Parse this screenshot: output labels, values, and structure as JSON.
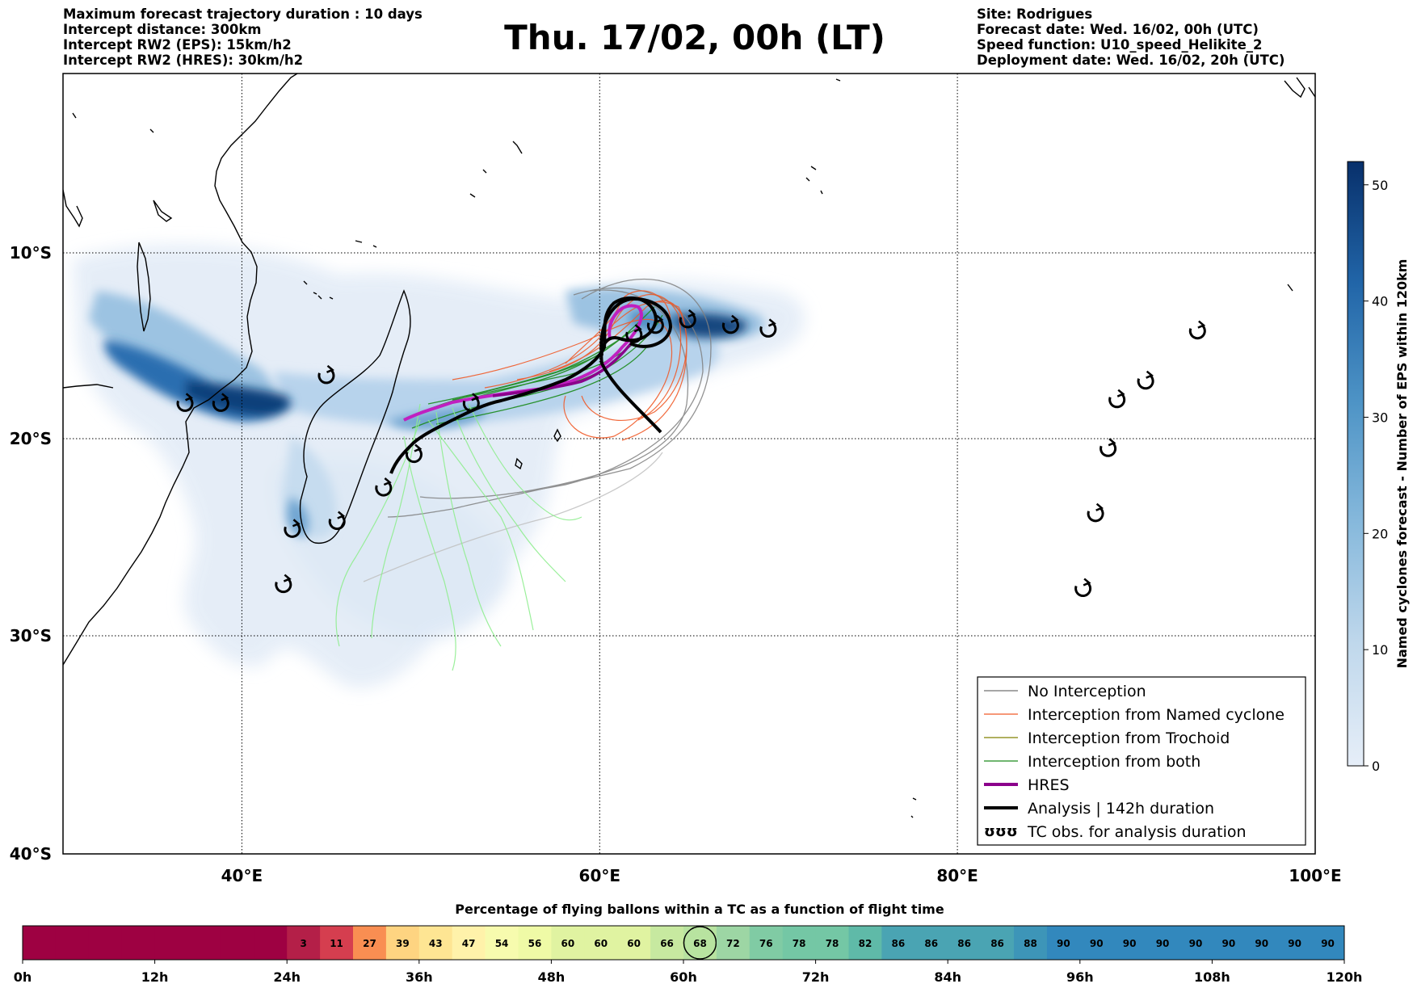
{
  "header_left": [
    "Maximum forecast trajectory duration : 10 days",
    "Intercept distance: 300km",
    "Intercept RW2 (EPS):  15km/h2",
    "Intercept RW2 (HRES): 30km/h2"
  ],
  "title": "Thu. 17/02, 00h (LT)",
  "header_right": [
    "Site: Rodrigues",
    "Forecast date: Wed. 16/02, 00h (UTC)",
    "Speed function: U10_speed_Helikite_2",
    "Deployment date: Wed. 16/02, 20h (UTC)"
  ],
  "map": {
    "lon_range": [
      30,
      100
    ],
    "lat_range": [
      -40,
      0
    ],
    "lon_ticks": [
      {
        "value": 40,
        "label": "40°E"
      },
      {
        "value": 60,
        "label": "60°E"
      },
      {
        "value": 80,
        "label": "80°E"
      },
      {
        "value": 100,
        "label": "100°E"
      }
    ],
    "lat_ticks": [
      {
        "value": -10,
        "label": "10°S"
      },
      {
        "value": -20,
        "label": "20°S"
      },
      {
        "value": -30,
        "label": "30°S"
      },
      {
        "value": -40,
        "label": "40°S"
      }
    ],
    "grid": true
  },
  "colorbar": {
    "label": "Named cyclones forecast - Number of EPS within 120km",
    "range": [
      0,
      52
    ],
    "ticks": [
      0,
      10,
      20,
      30,
      40,
      50
    ],
    "color_low": "#e6eef8",
    "color_high": "#08306b"
  },
  "legend": {
    "items": [
      {
        "label": "No Interception",
        "color": "#707070",
        "style": "thin"
      },
      {
        "label": "Interception from Named cyclone",
        "color": "#f05a28",
        "style": "thin"
      },
      {
        "label": "Interception from Trochoid",
        "color": "#808000",
        "style": "thin"
      },
      {
        "label": "Interception from both",
        "color": "#1a8a1a",
        "style": "thin"
      },
      {
        "label": "HRES",
        "color": "#8b008b",
        "style": "thick"
      },
      {
        "label": "Analysis | 142h duration",
        "color": "#000000",
        "style": "thick"
      },
      {
        "label": "TC obs. for analysis duration",
        "color": "#000000",
        "style": "symbol",
        "symbol": "ʊʊʊ"
      }
    ]
  },
  "tc_obs_lonlat": [
    [
      36.8,
      -18.1
    ],
    [
      38.8,
      -18.1
    ],
    [
      44.7,
      -16.6
    ],
    [
      42.8,
      -24.6
    ],
    [
      45.3,
      -24.2
    ],
    [
      42.3,
      -27.4
    ],
    [
      47.9,
      -22.5
    ],
    [
      49.6,
      -20.8
    ],
    [
      52.8,
      -18.1
    ],
    [
      61.9,
      -14.4
    ],
    [
      63.1,
      -13.9
    ],
    [
      64.9,
      -13.6
    ],
    [
      67.3,
      -13.9
    ],
    [
      69.4,
      -14.1
    ],
    [
      87.0,
      -27.6
    ],
    [
      87.7,
      -23.8
    ],
    [
      88.4,
      -20.5
    ],
    [
      88.9,
      -17.9
    ],
    [
      90.5,
      -16.9
    ],
    [
      93.4,
      -14.2
    ]
  ],
  "flight_bar": {
    "title": "Percentage of flying ballons within a TC as a function of flight time",
    "cells": [
      "",
      "",
      "",
      "",
      "",
      "",
      "",
      "",
      "3",
      "11",
      "27",
      "39",
      "43",
      "47",
      "54",
      "56",
      "60",
      "60",
      "60",
      "66",
      "68",
      "72",
      "76",
      "78",
      "78",
      "82",
      "86",
      "86",
      "86",
      "86",
      "88",
      "90",
      "90",
      "90",
      "90",
      "90",
      "90",
      "90",
      "90",
      "90"
    ],
    "cell_colors": [
      "#9e0142",
      "#9e0142",
      "#9e0142",
      "#9e0142",
      "#9e0142",
      "#9e0142",
      "#9e0142",
      "#9e0142",
      "#b41f48",
      "#d53e4f",
      "#f98e52",
      "#fed481",
      "#fee593",
      "#fff2aa",
      "#f7fbae",
      "#effaa6",
      "#e0f3a1",
      "#e0f3a1",
      "#e0f3a1",
      "#c7e9a0",
      "#b8e3a0",
      "#9dd6a4",
      "#80cba4",
      "#74c7a5",
      "#74c7a5",
      "#5fbaa8",
      "#4aa4b3",
      "#4aa4b3",
      "#4aa4b3",
      "#4aa4b3",
      "#3d95b8",
      "#3288bd",
      "#3288bd",
      "#3288bd",
      "#3288bd",
      "#3288bd",
      "#3288bd",
      "#3288bd",
      "#3288bd",
      "#3288bd"
    ],
    "highlight_index": 20,
    "ticks": [
      "0h",
      "12h",
      "24h",
      "36h",
      "48h",
      "60h",
      "72h",
      "84h",
      "96h",
      "108h",
      "120h"
    ]
  }
}
